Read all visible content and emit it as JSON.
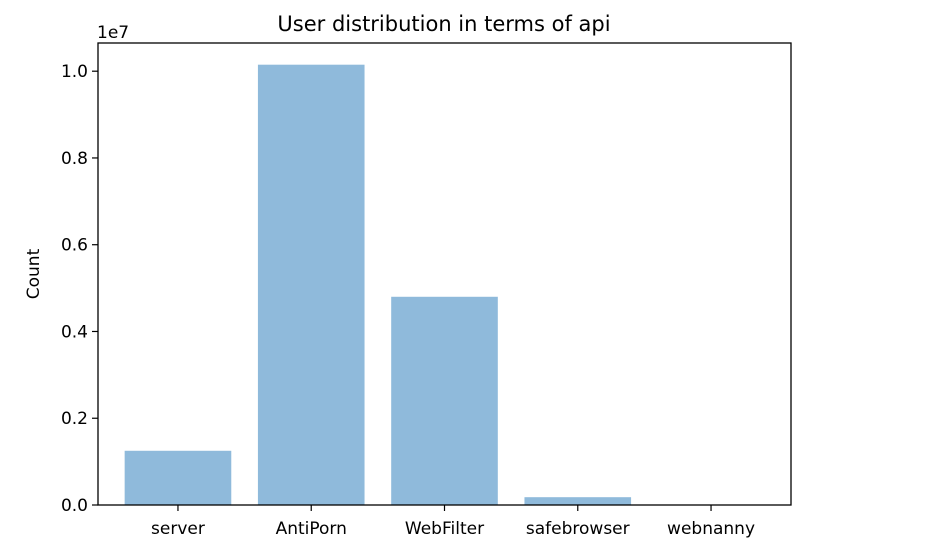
{
  "chart_data": {
    "type": "bar",
    "title": "User distribution in terms of api",
    "xlabel": "",
    "ylabel": "Count",
    "categories": [
      "server",
      "AntiPorn",
      "WebFilter",
      "safebrowser",
      "webnanny"
    ],
    "values": [
      1250000,
      10150000,
      4800000,
      180000,
      0
    ],
    "ylim": [
      0,
      10650000
    ],
    "yticks": [
      0,
      2000000,
      4000000,
      6000000,
      8000000,
      10000000
    ],
    "ytick_labels": [
      "0.0",
      "0.2",
      "0.4",
      "0.6",
      "0.8",
      "1.0"
    ],
    "offset_text": "1e7",
    "bar_color": "#8fbadb",
    "grid": false,
    "legend": "none"
  }
}
